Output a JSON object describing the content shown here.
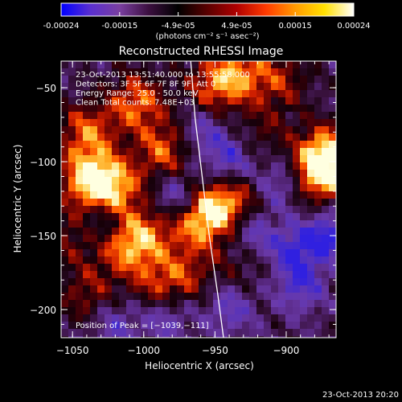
{
  "colorbar": {
    "ticks": [
      "-0.00024",
      "-0.00015",
      "-4.9e-05",
      "4.9e-05",
      "0.00015",
      "0.00024"
    ],
    "unit_label": "(photons cm⁻² s⁻¹ asec⁻²)",
    "stops": [
      "#0000ff",
      "#5a2fd0",
      "#7a3fa0",
      "#3b0f3f",
      "#000000",
      "#5a0000",
      "#b00000",
      "#ff3a00",
      "#ff9a00",
      "#ffe000",
      "#ffffff"
    ],
    "range": [
      -0.00024,
      0.00024
    ]
  },
  "footer": {
    "timestamp": "23-Oct-2013 20:20"
  },
  "chart_data": {
    "type": "heatmap",
    "title": "Reconstructed RHESSI Image",
    "xlabel": "Heliocentric X (arcsec)",
    "ylabel": "Heliocentric Y (arcsec)",
    "xlim": [
      -1058,
      -865
    ],
    "ylim": [
      -219,
      -32
    ],
    "xticks": [
      -1050,
      -1000,
      -950,
      -900
    ],
    "xtick_labels": [
      "−1050",
      "−1000",
      "−950",
      "−900"
    ],
    "yticks": [
      -50,
      -100,
      -150,
      -200
    ],
    "ytick_labels": [
      "−50",
      "−100",
      "−150",
      "−200"
    ],
    "annotations": [
      "23-Oct-2013 13:51:40.000  to 13:55:58.000",
      "Detectors: 3F 5F 6F 7F 8F 9F, Att 0",
      "Energy Range: 25.0 - 50.0 keV",
      "Clean     Total counts: 7.48E+03"
    ],
    "peak_label": "Position of Peak = [−1039,−111]",
    "peak": [
      -1039,
      -111
    ],
    "limb_curve": [
      [
        -967,
        -32
      ],
      [
        -964,
        -70
      ],
      [
        -959,
        -110
      ],
      [
        -954,
        -150
      ],
      [
        -948,
        -190
      ],
      [
        -944,
        -219
      ]
    ],
    "hot_spots": [
      {
        "x": -1038,
        "y": -112,
        "i": 1.0
      },
      {
        "x": -1020,
        "y": -118,
        "i": 0.8
      },
      {
        "x": -1040,
        "y": -80,
        "i": 0.7
      },
      {
        "x": -1005,
        "y": -60,
        "i": 0.75
      },
      {
        "x": -985,
        "y": -92,
        "i": 0.7
      },
      {
        "x": -950,
        "y": -48,
        "i": 0.7
      },
      {
        "x": -930,
        "y": -40,
        "i": 0.6
      },
      {
        "x": -903,
        "y": -45,
        "i": 0.45
      },
      {
        "x": -872,
        "y": -95,
        "i": 0.95
      },
      {
        "x": -876,
        "y": -110,
        "i": 0.8
      },
      {
        "x": -952,
        "y": -133,
        "i": 0.75
      },
      {
        "x": -965,
        "y": -140,
        "i": 0.6
      },
      {
        "x": -935,
        "y": -125,
        "i": 0.5
      },
      {
        "x": -1000,
        "y": -150,
        "i": 0.7
      },
      {
        "x": -1015,
        "y": -160,
        "i": 0.55
      },
      {
        "x": -990,
        "y": -185,
        "i": 0.5
      },
      {
        "x": -970,
        "y": -175,
        "i": 0.45
      },
      {
        "x": -1040,
        "y": -190,
        "i": 0.45
      },
      {
        "x": -1050,
        "y": -150,
        "i": 0.4
      },
      {
        "x": -930,
        "y": -165,
        "i": 0.35
      },
      {
        "x": -915,
        "y": -80,
        "i": 0.3
      }
    ],
    "cold_spots": [
      {
        "x": -975,
        "y": -125,
        "i": 0.85
      },
      {
        "x": -940,
        "y": -100,
        "i": 0.75
      },
      {
        "x": -925,
        "y": -150,
        "i": 0.8
      },
      {
        "x": -895,
        "y": -160,
        "i": 0.8
      },
      {
        "x": -870,
        "y": -150,
        "i": 0.95
      },
      {
        "x": -890,
        "y": -185,
        "i": 0.7
      },
      {
        "x": -960,
        "y": -80,
        "i": 0.6
      },
      {
        "x": -985,
        "y": -205,
        "i": 0.65
      },
      {
        "x": -1030,
        "y": -140,
        "i": 0.55
      },
      {
        "x": -1020,
        "y": -210,
        "i": 0.55
      },
      {
        "x": -905,
        "y": -115,
        "i": 0.6
      },
      {
        "x": -940,
        "y": -200,
        "i": 0.6
      }
    ]
  }
}
